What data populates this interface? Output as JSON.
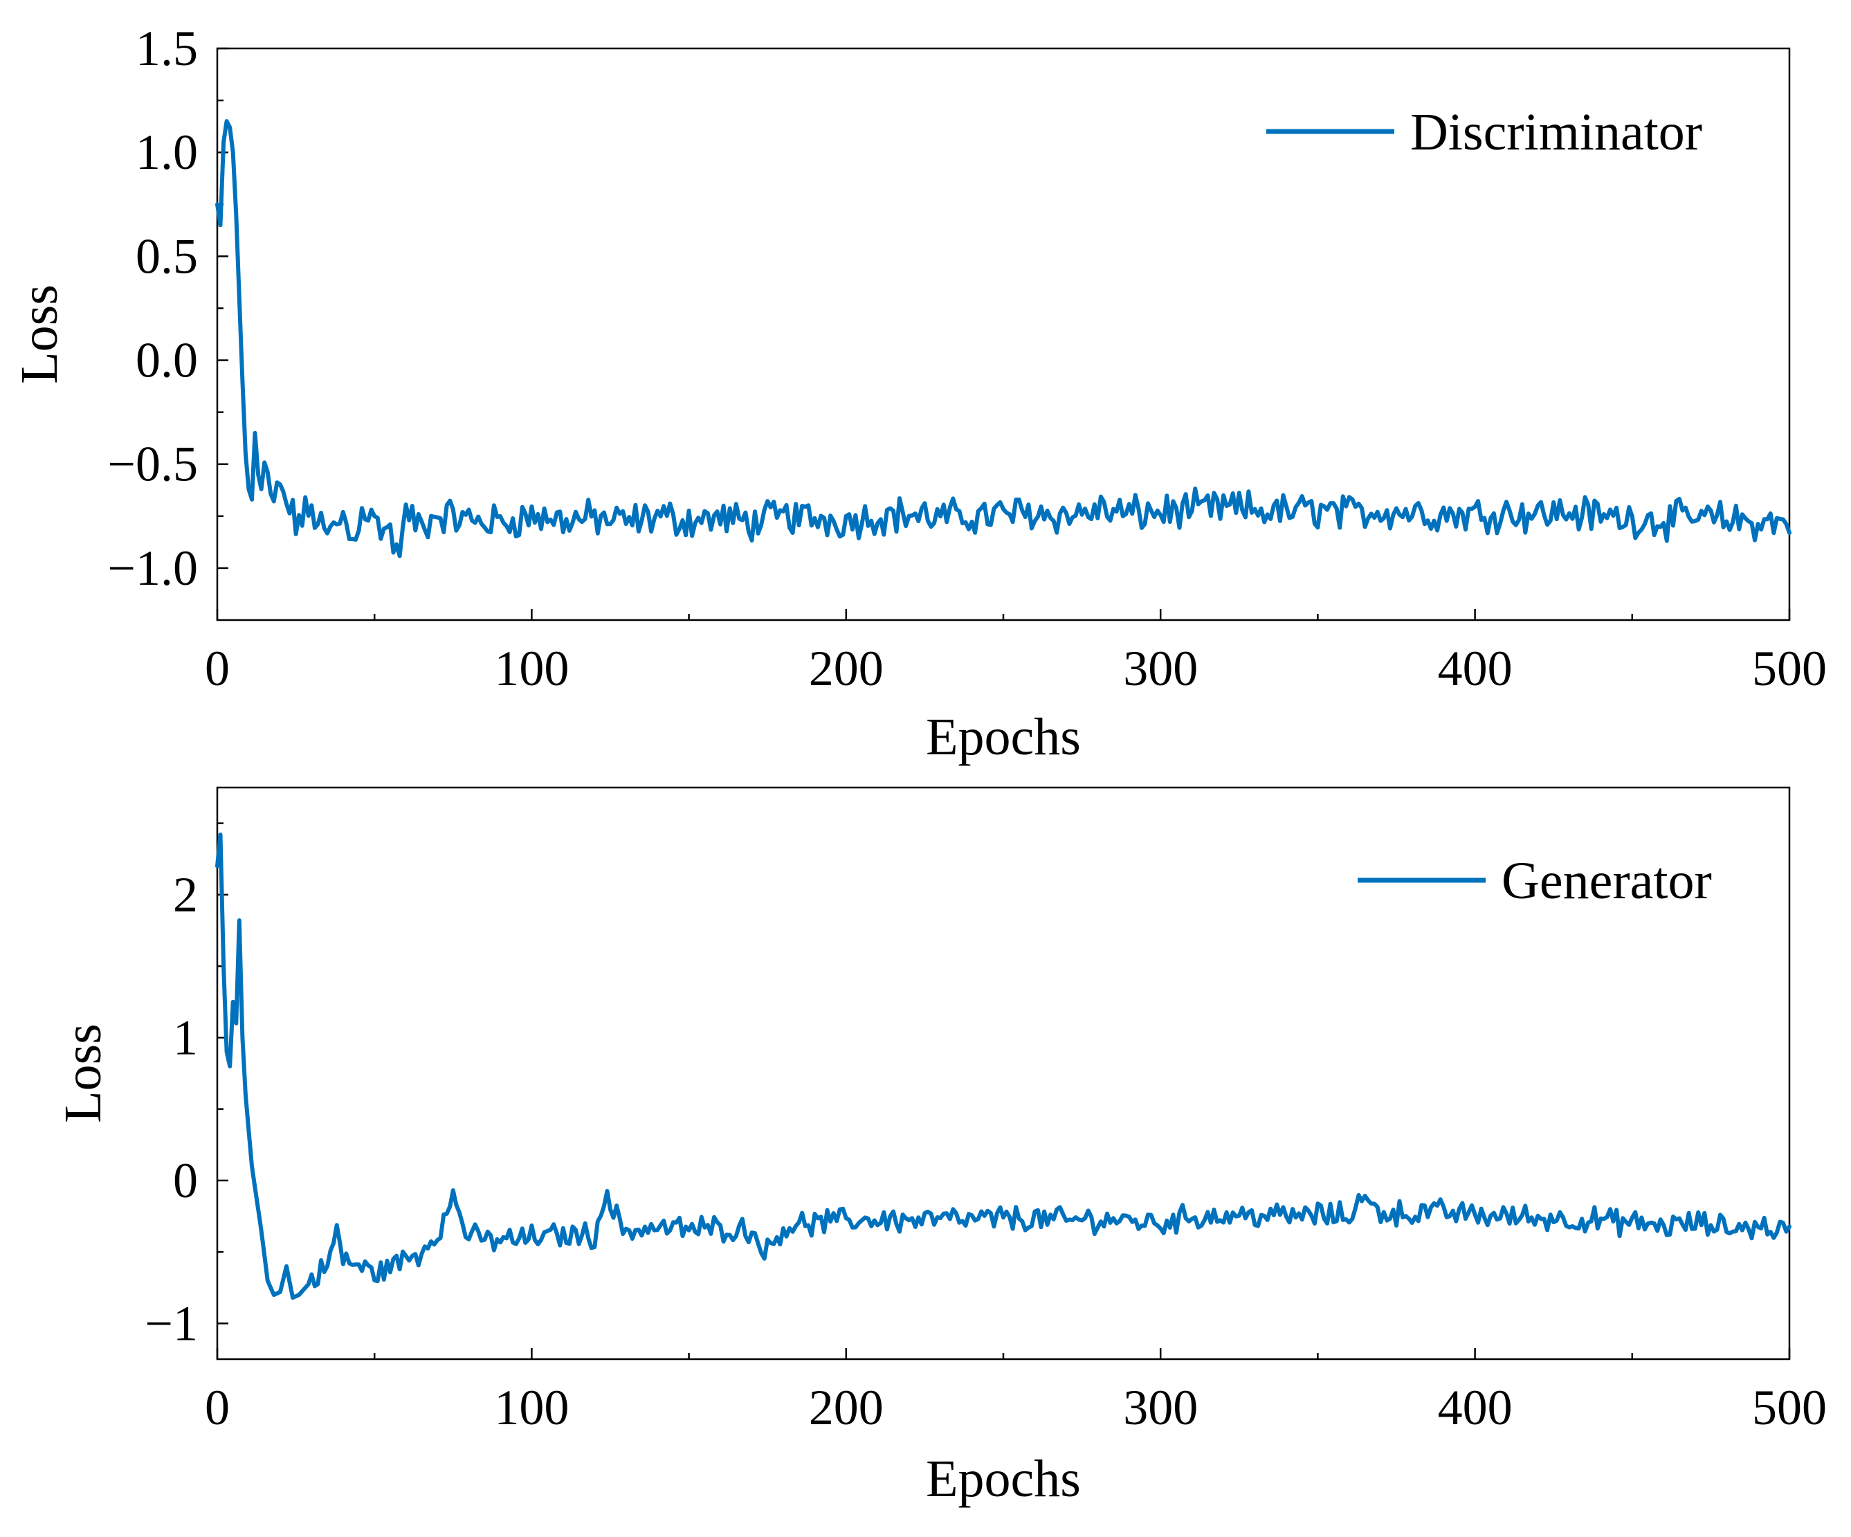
{
  "chart_data": [
    {
      "id": "discriminator",
      "type": "line",
      "xlabel": "Epochs",
      "ylabel": "Loss",
      "xlim": [
        0,
        500
      ],
      "ylim": [
        -1.25,
        1.5
      ],
      "x_ticks": [
        0,
        100,
        200,
        300,
        400,
        500
      ],
      "x_tick_labels": [
        "0",
        "100",
        "200",
        "300",
        "400",
        "500"
      ],
      "x_minor_ticks": [
        50,
        150,
        250,
        350,
        450
      ],
      "y_ticks": [
        1.5,
        1.0,
        0.5,
        0.0,
        -0.5,
        -1.0
      ],
      "y_tick_labels": [
        "1.5",
        "1.0",
        "0.5",
        "0.0",
        "−0.5",
        "−1.0"
      ],
      "y_minor_ticks": [
        1.25,
        0.75,
        0.25,
        -0.25,
        -0.75
      ],
      "legend_position": "top-right",
      "series": [
        {
          "name": "Discriminator",
          "color": "#0072BD",
          "x": [
            0,
            1,
            2,
            3,
            4,
            5,
            6,
            7,
            8,
            9,
            10,
            11,
            12,
            13,
            14,
            15,
            17,
            20,
            25,
            30,
            35,
            40,
            43,
            46,
            50,
            55,
            57,
            60,
            65,
            70,
            80,
            90,
            100,
            110,
            120,
            130,
            140,
            150,
            160,
            170,
            180,
            190,
            200,
            210,
            220,
            230,
            240,
            250,
            260,
            270,
            280,
            290,
            300,
            310,
            320,
            330,
            340,
            350,
            360,
            370,
            380,
            390,
            400,
            410,
            420,
            430,
            440,
            450,
            460,
            470,
            480,
            490,
            500
          ],
          "values": [
            0.75,
            0.65,
            1.05,
            1.15,
            1.12,
            1.0,
            0.7,
            0.3,
            -0.1,
            -0.45,
            -0.62,
            -0.67,
            -0.35,
            -0.55,
            -0.62,
            -0.5,
            -0.68,
            -0.62,
            -0.78,
            -0.72,
            -0.85,
            -0.75,
            -0.88,
            -0.7,
            -0.78,
            -0.82,
            -0.95,
            -0.75,
            -0.8,
            -0.74,
            -0.77,
            -0.78,
            -0.75,
            -0.77,
            -0.76,
            -0.78,
            -0.75,
            -0.77,
            -0.76,
            -0.78,
            -0.75,
            -0.76,
            -0.77,
            -0.75,
            -0.74,
            -0.76,
            -0.75,
            -0.74,
            -0.73,
            -0.75,
            -0.72,
            -0.74,
            -0.73,
            -0.72,
            -0.71,
            -0.72,
            -0.73,
            -0.72,
            -0.74,
            -0.72,
            -0.73,
            -0.74,
            -0.74,
            -0.73,
            -0.74,
            -0.73,
            -0.75,
            -0.76,
            -0.77,
            -0.76,
            -0.77,
            -0.78,
            -0.78
          ],
          "noise_start": 15,
          "noise": 0.07
        }
      ]
    },
    {
      "id": "generator",
      "type": "line",
      "xlabel": "Epochs",
      "ylabel": "Loss",
      "xlim": [
        0,
        500
      ],
      "ylim": [
        -1.25,
        2.75
      ],
      "x_ticks": [
        0,
        100,
        200,
        300,
        400,
        500
      ],
      "x_tick_labels": [
        "0",
        "100",
        "200",
        "300",
        "400",
        "500"
      ],
      "x_minor_ticks": [
        50,
        150,
        250,
        350,
        450
      ],
      "y_ticks": [
        2,
        1,
        0,
        -1
      ],
      "y_tick_labels": [
        "2",
        "1",
        "0",
        "−1"
      ],
      "y_minor_ticks": [
        2.5,
        1.5,
        0.5,
        -0.5
      ],
      "legend_position": "top-right",
      "series": [
        {
          "name": "Generator",
          "color": "#0072BD",
          "x": [
            0,
            1,
            2,
            3,
            4,
            5,
            6,
            7,
            8,
            9,
            10,
            11,
            12,
            14,
            16,
            18,
            20,
            22,
            24,
            26,
            30,
            35,
            38,
            40,
            45,
            50,
            55,
            60,
            65,
            70,
            73,
            75,
            80,
            90,
            100,
            110,
            120,
            123,
            130,
            140,
            150,
            160,
            170,
            175,
            180,
            190,
            200,
            210,
            220,
            230,
            240,
            250,
            260,
            270,
            280,
            290,
            300,
            310,
            320,
            330,
            340,
            350,
            360,
            363,
            370,
            380,
            390,
            400,
            410,
            420,
            430,
            440,
            450,
            460,
            470,
            480,
            490,
            500
          ],
          "values": [
            2.2,
            2.42,
            1.5,
            0.9,
            0.8,
            1.25,
            1.1,
            1.82,
            1.0,
            0.6,
            0.35,
            0.1,
            -0.05,
            -0.35,
            -0.7,
            -0.8,
            -0.78,
            -0.6,
            -0.82,
            -0.8,
            -0.7,
            -0.6,
            -0.35,
            -0.55,
            -0.6,
            -0.65,
            -0.6,
            -0.55,
            -0.5,
            -0.35,
            -0.25,
            -0.1,
            -0.4,
            -0.42,
            -0.4,
            -0.38,
            -0.38,
            -0.12,
            -0.35,
            -0.33,
            -0.34,
            -0.33,
            -0.35,
            -0.5,
            -0.32,
            -0.3,
            -0.28,
            -0.27,
            -0.28,
            -0.27,
            -0.28,
            -0.26,
            -0.27,
            -0.28,
            -0.27,
            -0.28,
            -0.3,
            -0.25,
            -0.25,
            -0.24,
            -0.25,
            -0.24,
            -0.25,
            -0.12,
            -0.22,
            -0.23,
            -0.22,
            -0.24,
            -0.25,
            -0.26,
            -0.27,
            -0.28,
            -0.3,
            -0.32,
            -0.3,
            -0.33,
            -0.32,
            -0.35
          ],
          "noise_start": 30,
          "noise": 0.07
        }
      ]
    }
  ]
}
